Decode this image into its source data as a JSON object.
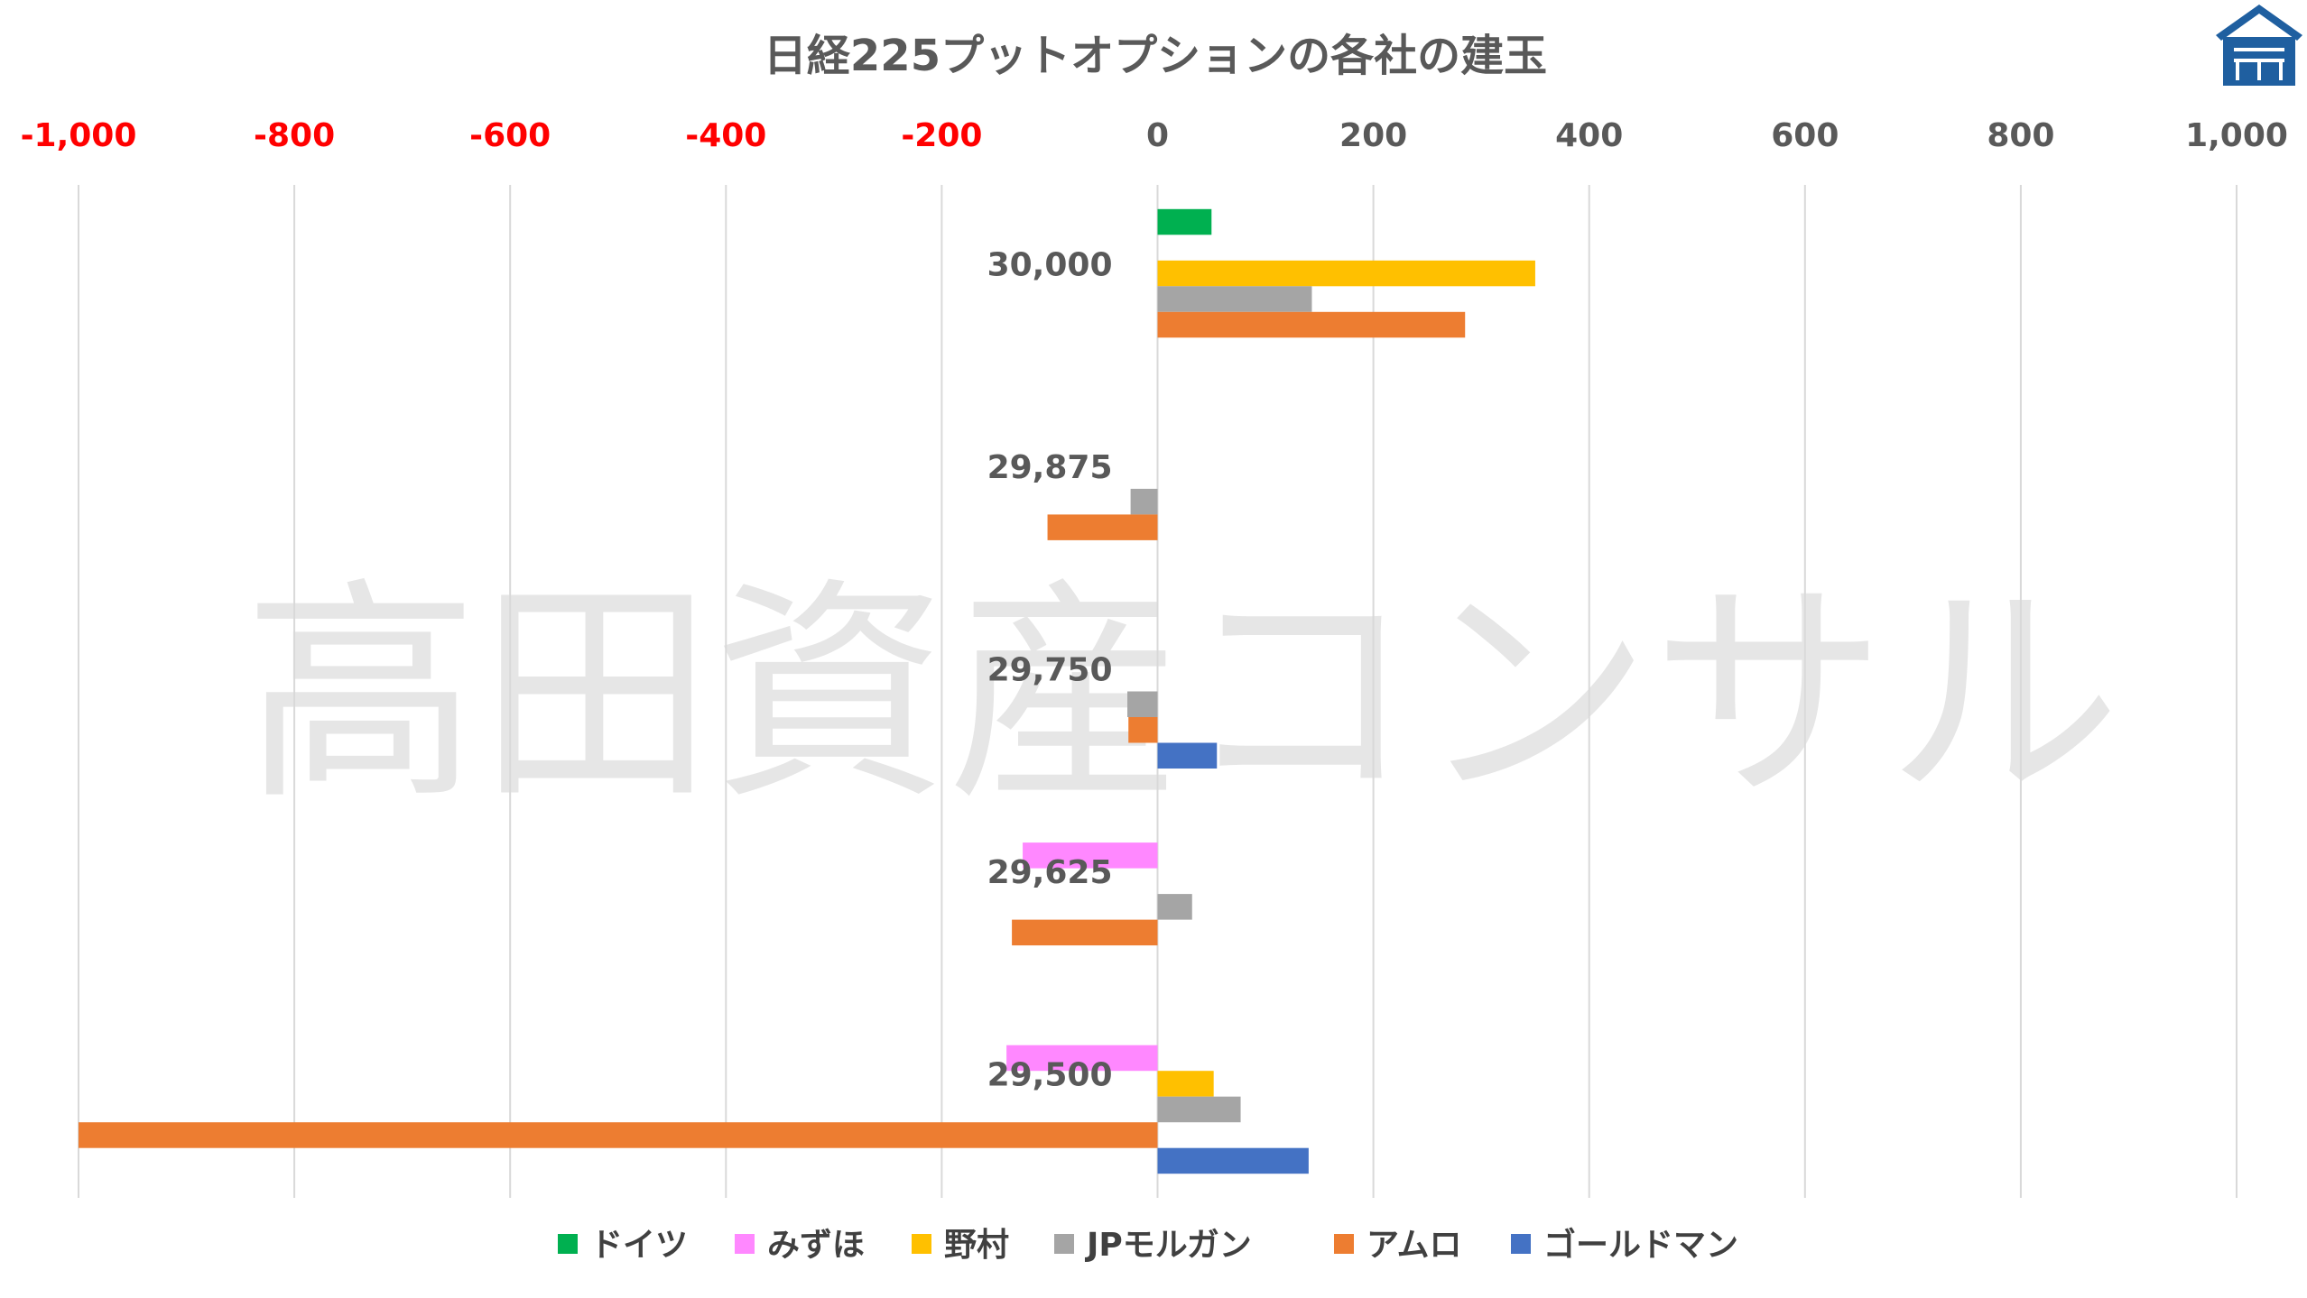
{
  "chart_data": {
    "type": "bar",
    "orientation": "horizontal",
    "title": "日経225プットオプションの各社の建玉",
    "watermark": "高田資産コンサル",
    "xlim": [
      -1000,
      1000
    ],
    "x_tick_values": [
      -1000,
      -800,
      -600,
      -400,
      -200,
      0,
      200,
      400,
      600,
      800,
      1000
    ],
    "x_tick_labels": [
      "-1,000",
      "-800",
      "-600",
      "-400",
      "-200",
      "0",
      "200",
      "400",
      "600",
      "800",
      "1,000"
    ],
    "negative_tick_color": "#ff0000",
    "positive_tick_color": "#595959",
    "grid": true,
    "legend_position": "bottom",
    "categories": [
      "30,000",
      "29,875",
      "29,750",
      "29,625",
      "29,500"
    ],
    "series": [
      {
        "name": "ドイツ",
        "color": "#00b050",
        "values": [
          50,
          0,
          0,
          0,
          0
        ]
      },
      {
        "name": "みずほ",
        "color": "#ff88ff",
        "values": [
          0,
          0,
          0,
          -125,
          -140
        ]
      },
      {
        "name": "野村",
        "color": "#ffc000",
        "values": [
          350,
          0,
          0,
          0,
          52
        ]
      },
      {
        "name": "JPモルガン",
        "color": "#a5a5a5",
        "values": [
          143,
          -25,
          -28,
          32,
          77
        ]
      },
      {
        "name": "アムロ",
        "color": "#ed7d31",
        "values": [
          285,
          -102,
          -27,
          -135,
          -1000
        ]
      },
      {
        "name": "ゴールドマン",
        "color": "#4472c4",
        "values": [
          0,
          0,
          55,
          0,
          140
        ]
      }
    ]
  },
  "logo": {
    "name": "house-logo-icon",
    "color": "#1f5fa0"
  }
}
